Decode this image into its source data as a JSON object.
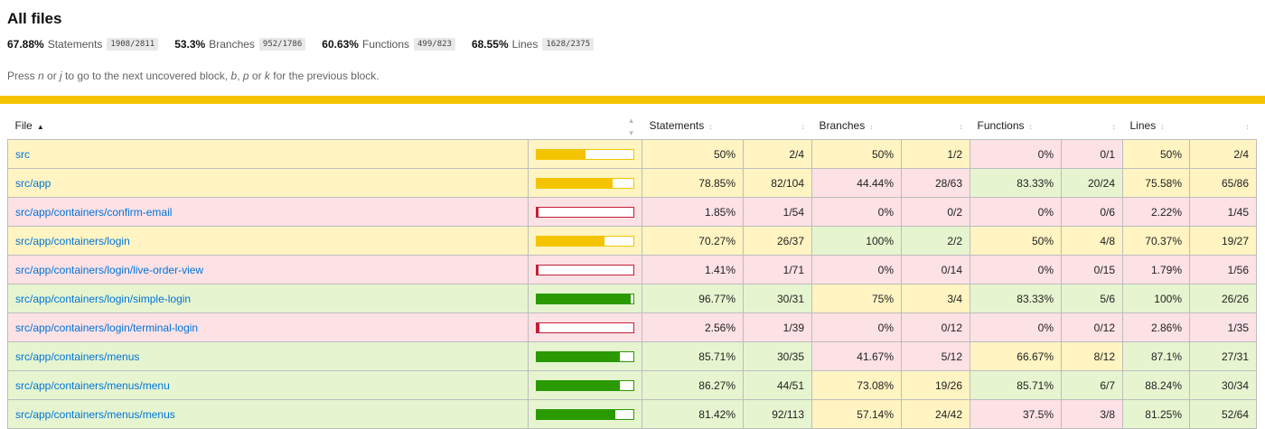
{
  "page": {
    "title": "All files",
    "hint_parts": [
      "Press ",
      "n",
      " or ",
      "j",
      " to go to the next uncovered block, ",
      "b",
      ", ",
      "p",
      " or ",
      "k",
      " for the previous block."
    ]
  },
  "summary": [
    {
      "pct": "67.88%",
      "label": "Statements",
      "frac": "1908/2811"
    },
    {
      "pct": "53.3%",
      "label": "Branches",
      "frac": "952/1786"
    },
    {
      "pct": "60.63%",
      "label": "Functions",
      "frac": "499/823"
    },
    {
      "pct": "68.55%",
      "label": "Lines",
      "frac": "1628/2375"
    }
  ],
  "columns": {
    "file": "File",
    "statements": "Statements",
    "branches": "Branches",
    "functions": "Functions",
    "lines": "Lines"
  },
  "colors": {
    "high": "#e6f5d0",
    "medium": "#fff4c2",
    "low": "#fce1e5",
    "bar_high": "#2a9a00",
    "bar_medium": "#f5c400",
    "bar_low": "#c21f39",
    "accent_bar": "#f5c400",
    "link": "#0074d9"
  },
  "rows": [
    {
      "file": "src",
      "bar_pct": 50,
      "bar_level": "medium",
      "s_pct": "50%",
      "s_frac": "2/4",
      "s_level": "medium",
      "b_pct": "50%",
      "b_frac": "1/2",
      "b_level": "medium",
      "f_pct": "0%",
      "f_frac": "0/1",
      "f_level": "low",
      "l_pct": "50%",
      "l_frac": "2/4",
      "l_level": "medium",
      "row_level": "medium"
    },
    {
      "file": "src/app",
      "bar_pct": 78.85,
      "bar_level": "medium",
      "s_pct": "78.85%",
      "s_frac": "82/104",
      "s_level": "medium",
      "b_pct": "44.44%",
      "b_frac": "28/63",
      "b_level": "low",
      "f_pct": "83.33%",
      "f_frac": "20/24",
      "f_level": "high",
      "l_pct": "75.58%",
      "l_frac": "65/86",
      "l_level": "medium",
      "row_level": "medium"
    },
    {
      "file": "src/app/containers/confirm-email",
      "bar_pct": 1.85,
      "bar_level": "low",
      "s_pct": "1.85%",
      "s_frac": "1/54",
      "s_level": "low",
      "b_pct": "0%",
      "b_frac": "0/2",
      "b_level": "low",
      "f_pct": "0%",
      "f_frac": "0/6",
      "f_level": "low",
      "l_pct": "2.22%",
      "l_frac": "1/45",
      "l_level": "low",
      "row_level": "low"
    },
    {
      "file": "src/app/containers/login",
      "bar_pct": 70.27,
      "bar_level": "medium",
      "s_pct": "70.27%",
      "s_frac": "26/37",
      "s_level": "medium",
      "b_pct": "100%",
      "b_frac": "2/2",
      "b_level": "high",
      "f_pct": "50%",
      "f_frac": "4/8",
      "f_level": "medium",
      "l_pct": "70.37%",
      "l_frac": "19/27",
      "l_level": "medium",
      "row_level": "medium"
    },
    {
      "file": "src/app/containers/login/live-order-view",
      "bar_pct": 1.41,
      "bar_level": "low",
      "s_pct": "1.41%",
      "s_frac": "1/71",
      "s_level": "low",
      "b_pct": "0%",
      "b_frac": "0/14",
      "b_level": "low",
      "f_pct": "0%",
      "f_frac": "0/15",
      "f_level": "low",
      "l_pct": "1.79%",
      "l_frac": "1/56",
      "l_level": "low",
      "row_level": "low"
    },
    {
      "file": "src/app/containers/login/simple-login",
      "bar_pct": 96.77,
      "bar_level": "high",
      "s_pct": "96.77%",
      "s_frac": "30/31",
      "s_level": "high",
      "b_pct": "75%",
      "b_frac": "3/4",
      "b_level": "medium",
      "f_pct": "83.33%",
      "f_frac": "5/6",
      "f_level": "high",
      "l_pct": "100%",
      "l_frac": "26/26",
      "l_level": "high",
      "row_level": "high"
    },
    {
      "file": "src/app/containers/login/terminal-login",
      "bar_pct": 2.56,
      "bar_level": "low",
      "s_pct": "2.56%",
      "s_frac": "1/39",
      "s_level": "low",
      "b_pct": "0%",
      "b_frac": "0/12",
      "b_level": "low",
      "f_pct": "0%",
      "f_frac": "0/12",
      "f_level": "low",
      "l_pct": "2.86%",
      "l_frac": "1/35",
      "l_level": "low",
      "row_level": "low"
    },
    {
      "file": "src/app/containers/menus",
      "bar_pct": 85.71,
      "bar_level": "high",
      "s_pct": "85.71%",
      "s_frac": "30/35",
      "s_level": "high",
      "b_pct": "41.67%",
      "b_frac": "5/12",
      "b_level": "low",
      "f_pct": "66.67%",
      "f_frac": "8/12",
      "f_level": "medium",
      "l_pct": "87.1%",
      "l_frac": "27/31",
      "l_level": "high",
      "row_level": "high"
    },
    {
      "file": "src/app/containers/menus/menu",
      "bar_pct": 86.27,
      "bar_level": "high",
      "s_pct": "86.27%",
      "s_frac": "44/51",
      "s_level": "high",
      "b_pct": "73.08%",
      "b_frac": "19/26",
      "b_level": "medium",
      "f_pct": "85.71%",
      "f_frac": "6/7",
      "f_level": "high",
      "l_pct": "88.24%",
      "l_frac": "30/34",
      "l_level": "high",
      "row_level": "high"
    },
    {
      "file": "src/app/containers/menus/menus",
      "bar_pct": 81.42,
      "bar_level": "high",
      "s_pct": "81.42%",
      "s_frac": "92/113",
      "s_level": "high",
      "b_pct": "57.14%",
      "b_frac": "24/42",
      "b_level": "medium",
      "f_pct": "37.5%",
      "f_frac": "3/8",
      "f_level": "low",
      "l_pct": "81.25%",
      "l_frac": "52/64",
      "l_level": "high",
      "row_level": "high"
    }
  ]
}
